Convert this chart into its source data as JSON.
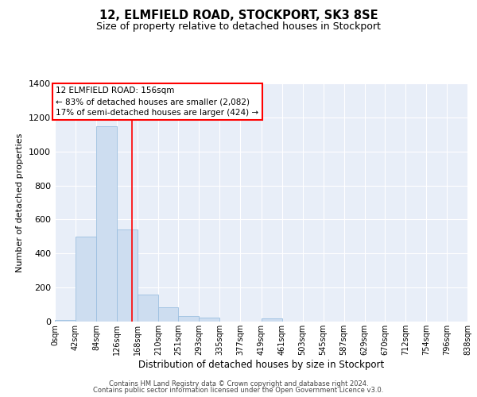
{
  "title1": "12, ELMFIELD ROAD, STOCKPORT, SK3 8SE",
  "title2": "Size of property relative to detached houses in Stockport",
  "xlabel": "Distribution of detached houses by size in Stockport",
  "ylabel": "Number of detached properties",
  "bar_color": "#cdddf0",
  "bar_edgecolor": "#9bbfe0",
  "background_color": "#e8eef8",
  "grid_color": "#ffffff",
  "bin_edges": [
    0,
    42,
    84,
    126,
    168,
    210,
    251,
    293,
    335,
    377,
    419,
    461,
    503,
    545,
    587,
    629,
    670,
    712,
    754,
    796,
    838
  ],
  "bar_heights": [
    10,
    500,
    1150,
    540,
    160,
    85,
    35,
    25,
    0,
    0,
    20,
    0,
    0,
    0,
    0,
    0,
    0,
    0,
    0,
    0
  ],
  "red_line_x": 156,
  "annotation_line1": "12 ELMFIELD ROAD: 156sqm",
  "annotation_line2": "← 83% of detached houses are smaller (2,082)",
  "annotation_line3": "17% of semi-detached houses are larger (424) →",
  "ylim": [
    0,
    1400
  ],
  "xlim": [
    0,
    838
  ],
  "yticks": [
    0,
    200,
    400,
    600,
    800,
    1000,
    1200,
    1400
  ],
  "tick_labels": [
    "0sqm",
    "42sqm",
    "84sqm",
    "126sqm",
    "168sqm",
    "210sqm",
    "251sqm",
    "293sqm",
    "335sqm",
    "377sqm",
    "419sqm",
    "461sqm",
    "503sqm",
    "545sqm",
    "587sqm",
    "629sqm",
    "670sqm",
    "712sqm",
    "754sqm",
    "796sqm",
    "838sqm"
  ],
  "footer1": "Contains HM Land Registry data © Crown copyright and database right 2024.",
  "footer2": "Contains public sector information licensed under the Open Government Licence v3.0."
}
